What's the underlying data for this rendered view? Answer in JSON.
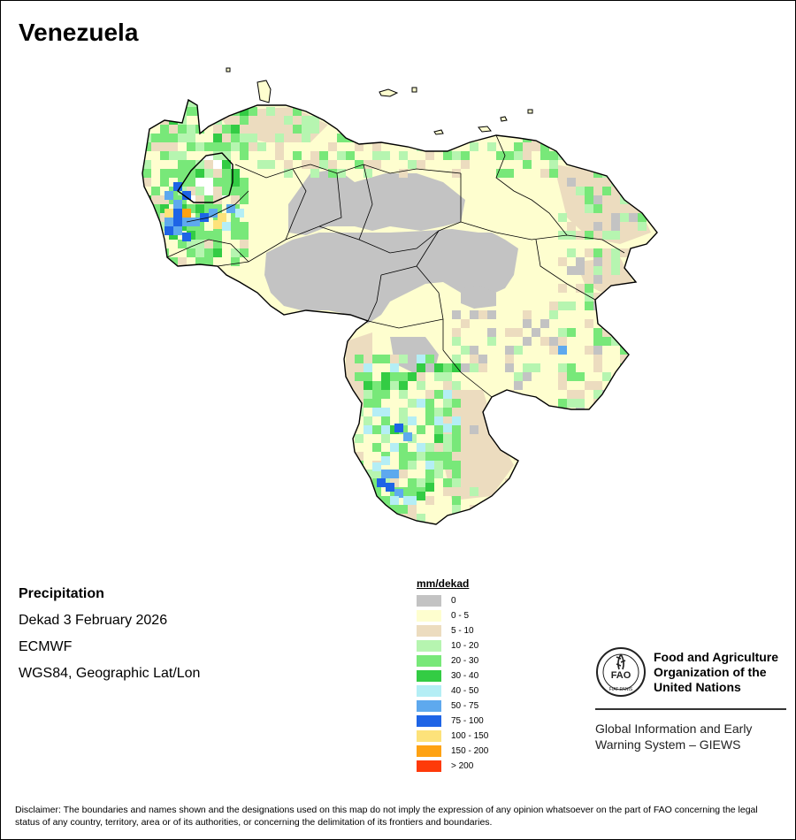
{
  "title": "Venezuela",
  "info": {
    "variable": "Precipitation",
    "period": "Dekad 3 February 2026",
    "source": "ECMWF",
    "projection": "WGS84, Geographic Lat/Lon"
  },
  "legend": {
    "unit": "mm/dekad",
    "classes": [
      {
        "label": "0",
        "color": "#c3c3c3"
      },
      {
        "label": "0 - 5",
        "color": "#fefecf"
      },
      {
        "label": "5 - 10",
        "color": "#ecdcbf"
      },
      {
        "label": "10 - 20",
        "color": "#b6f5b0"
      },
      {
        "label": "20 - 30",
        "color": "#78e879"
      },
      {
        "label": "30 - 40",
        "color": "#33cc44"
      },
      {
        "label": "40 - 50",
        "color": "#b4eef5"
      },
      {
        "label": "50 - 75",
        "color": "#5ea9ee"
      },
      {
        "label": "75 - 100",
        "color": "#1e64e6"
      },
      {
        "label": "100 - 150",
        "color": "#fde27a"
      },
      {
        "label": "150 - 200",
        "color": "#fea213"
      },
      {
        "label": "> 200",
        "color": "#fe3a0a"
      }
    ]
  },
  "fao": {
    "name_lines": [
      "Food and Agriculture",
      "Organization of the",
      "United Nations"
    ],
    "system_lines": [
      "Global Information and Early",
      "Warning System – GIEWS"
    ],
    "emblem_text": "FAO",
    "emblem_motto": "FIAT PANIS"
  },
  "disclaimer": "Disclaimer: The boundaries and names shown and the designations used on this map do not imply the expression of any opinion whatsoever on the part of FAO concerning the legal status of any country, territory, area or of its authorities, or concerning the delimitation of its frontiers and boundaries."
}
